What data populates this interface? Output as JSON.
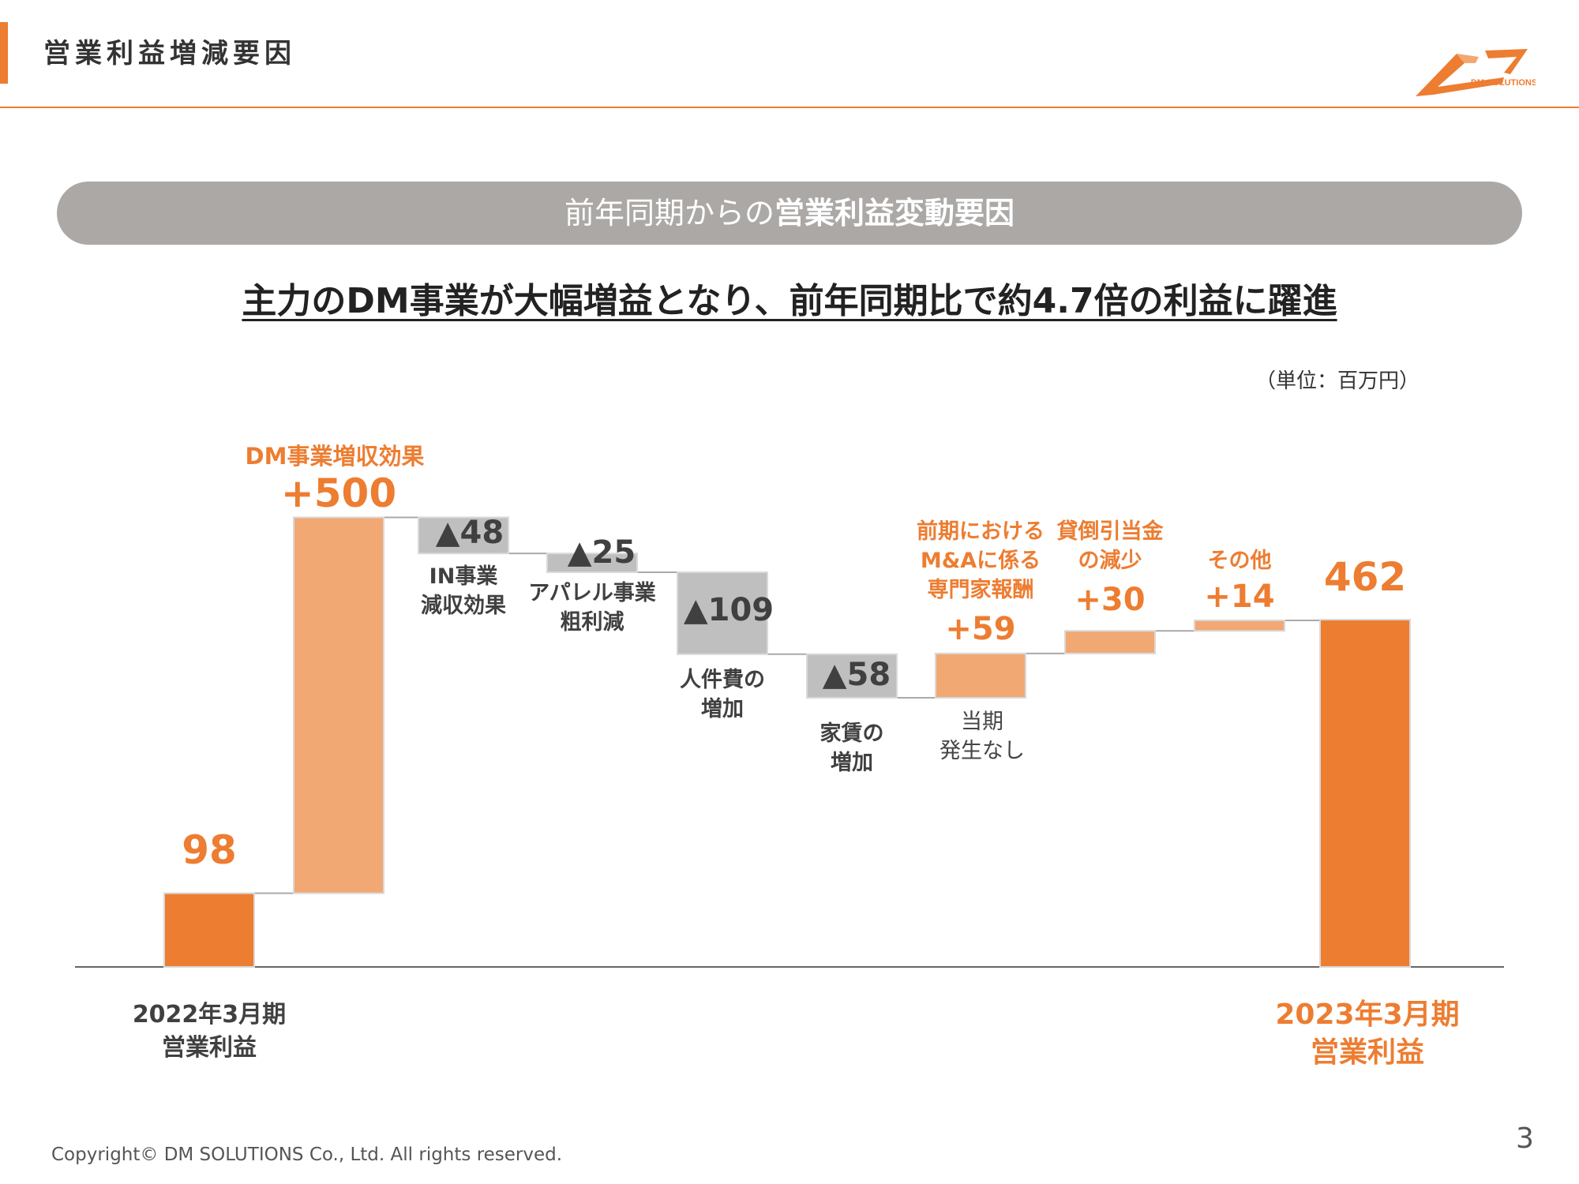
{
  "header": {
    "title": "営業利益増減要因",
    "logo_text": "DM SOLUTIONS"
  },
  "banner": {
    "text_normal": "前年同期からの",
    "text_bold": "営業利益変動要因"
  },
  "headline": "主力のDM事業が大幅増益となり、前年同期比で約4.7倍の利益に躍進",
  "unit_label": "（単位：百万円）",
  "chart_data": {
    "type": "waterfall",
    "ylim": [
      0,
      600
    ],
    "colors": {
      "total": "#ED7D31",
      "increase": "#F2A873",
      "decrease": "#BFBFBF",
      "connector": "#AAAAAA"
    },
    "bars": [
      {
        "kind": "total",
        "value": 98,
        "value_label": "98",
        "label": "2022年3月期 営業利益",
        "label_lines": [
          "2022年3月期",
          "営業利益"
        ]
      },
      {
        "kind": "increase",
        "value": 500,
        "value_label": "+500",
        "label": "DM事業増収効果",
        "label_lines": [
          "DM事業増収効果"
        ]
      },
      {
        "kind": "decrease",
        "value": -48,
        "value_label": "▲48",
        "label": "IN事業減収効果",
        "label_lines": [
          "IN事業",
          "減収効果"
        ]
      },
      {
        "kind": "decrease",
        "value": -25,
        "value_label": "▲25",
        "label": "アパレル事業粗利減",
        "label_lines": [
          "アパレル事業",
          "粗利減"
        ]
      },
      {
        "kind": "decrease",
        "value": -109,
        "value_label": "▲109",
        "label": "人件費の増加",
        "label_lines": [
          "人件費の",
          "増加"
        ]
      },
      {
        "kind": "decrease",
        "value": -58,
        "value_label": "▲58",
        "label": "家賃の増加",
        "label_lines": [
          "家賃の",
          "増加"
        ]
      },
      {
        "kind": "increase",
        "value": 59,
        "value_label": "+59",
        "label": "前期におけるM&Aに係る専門家報酬",
        "label_lines": [
          "前期における",
          "M&Aに係る",
          "専門家報酬"
        ],
        "note_lines": [
          "当期",
          "発生なし"
        ]
      },
      {
        "kind": "increase",
        "value": 30,
        "value_label": "+30",
        "label": "貸倒引当金の減少",
        "label_lines": [
          "貸倒引当金",
          "の減少"
        ]
      },
      {
        "kind": "increase",
        "value": 14,
        "value_label": "+14",
        "label": "その他",
        "label_lines": [
          "その他"
        ]
      },
      {
        "kind": "total",
        "value": 462,
        "value_label": "462",
        "label": "2023年3月期 営業利益",
        "label_lines": [
          "2023年3月期",
          "営業利益"
        ]
      }
    ]
  },
  "footer": {
    "copyright": "Copyright© DM SOLUTIONS Co., Ltd. All rights reserved.",
    "page_number": "3"
  }
}
